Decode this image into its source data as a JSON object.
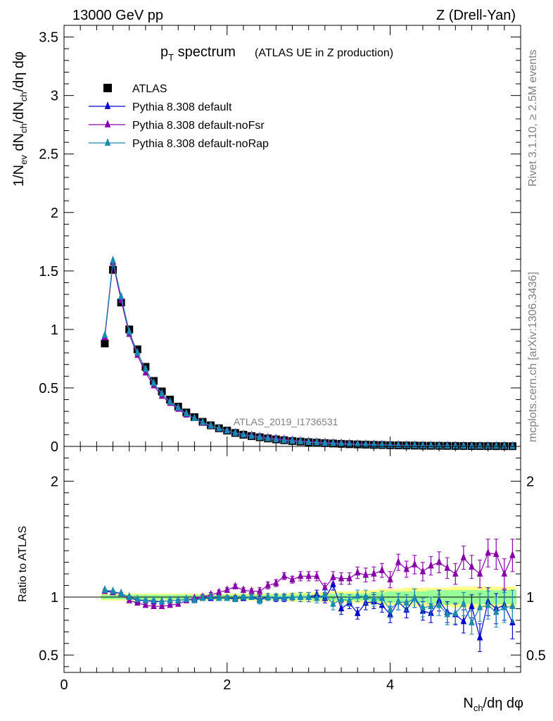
{
  "header": {
    "energy_label": "13000 GeV pp",
    "process_label": "Z (Drell-Yan)"
  },
  "side_text": {
    "rivet": "Rivet 3.1.10, ≥ 2.5M events",
    "mcplots": "mcplots.cern.ch [arXiv:1306.3436]"
  },
  "chart_data": [
    {
      "panel": "main",
      "type": "scatter",
      "title_main": "p",
      "title_sub": "T",
      "title_rest": " spectrum",
      "title_note": "(ATLAS UE in Z production)",
      "analysis_tag": "ATLAS_2019_I1736531",
      "ylabel": "1/N_ev dN_ch/dN_ch/dη dφ",
      "ylabel_parts": {
        "a": "1/N",
        "b": "ev",
        "c": " dN",
        "d": "ch",
        "e": "/dN",
        "f": "ch",
        "g": "/dη dφ"
      },
      "xlim": [
        0,
        5.6
      ],
      "ylim": [
        0,
        3.6
      ],
      "yticks": [
        0,
        0.5,
        1,
        1.5,
        2,
        2.5,
        3,
        3.5
      ],
      "ytick_labels": [
        "0",
        "0.5",
        "1",
        "1.5",
        "2",
        "2.5",
        "3",
        "3.5"
      ],
      "legend_position": "top-left",
      "x": [
        0.5,
        0.6,
        0.7,
        0.8,
        0.9,
        1.0,
        1.1,
        1.2,
        1.3,
        1.4,
        1.5,
        1.6,
        1.7,
        1.8,
        1.9,
        2.0,
        2.1,
        2.2,
        2.3,
        2.4,
        2.5,
        2.6,
        2.7,
        2.8,
        2.9,
        3.0,
        3.1,
        3.2,
        3.3,
        3.4,
        3.5,
        3.6,
        3.7,
        3.8,
        3.9,
        4.0,
        4.1,
        4.2,
        4.3,
        4.4,
        4.5,
        4.6,
        4.7,
        4.8,
        4.9,
        5.0,
        5.1,
        5.2,
        5.3,
        5.4,
        5.5
      ],
      "series": [
        {
          "name": "ATLAS",
          "color": "#000000",
          "marker": "square",
          "values": [
            0.88,
            1.51,
            1.23,
            1.0,
            0.83,
            0.68,
            0.56,
            0.47,
            0.4,
            0.34,
            0.29,
            0.25,
            0.21,
            0.18,
            0.155,
            0.135,
            0.115,
            0.1,
            0.088,
            0.078,
            0.068,
            0.06,
            0.053,
            0.046,
            0.041,
            0.036,
            0.032,
            0.028,
            0.025,
            0.022,
            0.019,
            0.017,
            0.015,
            0.013,
            0.012,
            0.01,
            0.009,
            0.008,
            0.007,
            0.006,
            0.0055,
            0.005,
            0.0045,
            0.004,
            0.0035,
            0.003,
            0.0027,
            0.0024,
            0.0021,
            0.0019,
            0.0017
          ]
        },
        {
          "name": "Pythia 8.308 default",
          "color": "#0000cc",
          "marker": "triangle",
          "values": [
            0.94,
            1.58,
            1.27,
            0.98,
            0.8,
            0.66,
            0.54,
            0.45,
            0.38,
            0.33,
            0.28,
            0.24,
            0.205,
            0.176,
            0.152,
            0.132,
            0.113,
            0.099,
            0.087,
            0.077,
            0.068,
            0.059,
            0.052,
            0.046,
            0.041,
            0.036,
            0.032,
            0.028,
            0.025,
            0.022,
            0.019,
            0.017,
            0.015,
            0.013,
            0.012,
            0.01,
            0.009,
            0.008,
            0.007,
            0.006,
            0.0055,
            0.005,
            0.0045,
            0.004,
            0.0035,
            0.003,
            0.0027,
            0.0024,
            0.0021,
            0.0019,
            0.0017
          ]
        },
        {
          "name": "Pythia 8.308 default-noFsr",
          "color": "#8800aa",
          "marker": "triangle",
          "values": [
            0.93,
            1.57,
            1.25,
            0.96,
            0.78,
            0.63,
            0.52,
            0.43,
            0.37,
            0.32,
            0.27,
            0.24,
            0.2,
            0.175,
            0.152,
            0.134,
            0.117,
            0.104,
            0.093,
            0.084,
            0.075,
            0.067,
            0.06,
            0.053,
            0.047,
            0.042,
            0.038,
            0.034,
            0.03,
            0.027,
            0.024,
            0.021,
            0.019,
            0.017,
            0.015,
            0.013,
            0.012,
            0.011,
            0.0095,
            0.0085,
            0.0075,
            0.0068,
            0.006,
            0.0053,
            0.0047,
            0.0041,
            0.0037,
            0.0033,
            0.003,
            0.0027,
            0.0024
          ]
        },
        {
          "name": "Pythia 8.308 default-noRap",
          "color": "#1a8ab0",
          "marker": "triangle",
          "values": [
            0.95,
            1.59,
            1.28,
            0.98,
            0.8,
            0.66,
            0.54,
            0.45,
            0.38,
            0.33,
            0.28,
            0.24,
            0.205,
            0.177,
            0.153,
            0.133,
            0.114,
            0.1,
            0.087,
            0.077,
            0.067,
            0.059,
            0.052,
            0.046,
            0.041,
            0.036,
            0.032,
            0.028,
            0.025,
            0.022,
            0.019,
            0.017,
            0.015,
            0.013,
            0.012,
            0.01,
            0.009,
            0.008,
            0.007,
            0.006,
            0.0055,
            0.005,
            0.0045,
            0.004,
            0.0035,
            0.003,
            0.0027,
            0.0024,
            0.0021,
            0.0019,
            0.0017
          ]
        }
      ]
    },
    {
      "panel": "ratio",
      "type": "line",
      "ylabel": "Ratio to ATLAS",
      "xlabel": "N_ch/dη dφ",
      "xlabel_parts": {
        "a": "N",
        "b": "ch",
        "c": "/dη dφ"
      },
      "xlim": [
        0,
        5.6
      ],
      "ylim": [
        0.35,
        2.3
      ],
      "xticks": [
        0,
        2,
        4
      ],
      "xtick_labels": [
        "0",
        "2",
        "4"
      ],
      "yticks": [
        0.5,
        1,
        2
      ],
      "ytick_labels": [
        "0.5",
        "1",
        "2"
      ],
      "x": [
        0.5,
        0.6,
        0.7,
        0.8,
        0.9,
        1.0,
        1.1,
        1.2,
        1.3,
        1.4,
        1.5,
        1.6,
        1.7,
        1.8,
        1.9,
        2.0,
        2.1,
        2.2,
        2.3,
        2.4,
        2.5,
        2.6,
        2.7,
        2.8,
        2.9,
        3.0,
        3.1,
        3.2,
        3.3,
        3.4,
        3.5,
        3.6,
        3.7,
        3.8,
        3.9,
        4.0,
        4.1,
        4.2,
        4.3,
        4.4,
        4.5,
        4.6,
        4.7,
        4.8,
        4.9,
        5.0,
        5.1,
        5.2,
        5.3,
        5.4,
        5.5
      ],
      "band": {
        "inner_color": "#99ff99",
        "outer_color": "#ffff88",
        "inner_halfwidth": [
          0.02,
          0.02,
          0.02,
          0.02,
          0.02,
          0.02,
          0.02,
          0.02,
          0.02,
          0.02,
          0.02,
          0.02,
          0.02,
          0.02,
          0.02,
          0.02,
          0.02,
          0.02,
          0.02,
          0.02,
          0.02,
          0.02,
          0.02,
          0.02,
          0.02,
          0.02,
          0.02,
          0.02,
          0.03,
          0.03,
          0.03,
          0.03,
          0.03,
          0.04,
          0.04,
          0.05,
          0.05,
          0.05,
          0.05,
          0.05,
          0.06,
          0.06,
          0.06,
          0.06,
          0.06,
          0.06,
          0.06,
          0.06,
          0.06,
          0.06,
          0.06
        ],
        "outer_halfwidth": [
          0.03,
          0.03,
          0.03,
          0.03,
          0.03,
          0.03,
          0.03,
          0.03,
          0.03,
          0.03,
          0.03,
          0.03,
          0.03,
          0.03,
          0.03,
          0.03,
          0.03,
          0.03,
          0.03,
          0.03,
          0.03,
          0.03,
          0.03,
          0.04,
          0.04,
          0.04,
          0.04,
          0.04,
          0.05,
          0.05,
          0.05,
          0.05,
          0.06,
          0.06,
          0.07,
          0.07,
          0.07,
          0.08,
          0.08,
          0.08,
          0.08,
          0.08,
          0.08,
          0.09,
          0.09,
          0.09,
          0.09,
          0.09,
          0.09,
          0.09,
          0.09
        ]
      },
      "series": [
        {
          "name": "Pythia 8.308 default",
          "color": "#0000cc",
          "values": [
            1.06,
            1.04,
            1.03,
            1.0,
            0.97,
            0.97,
            0.96,
            0.96,
            0.97,
            0.97,
            0.98,
            0.98,
            0.99,
            0.99,
            0.99,
            0.99,
            0.99,
            0.99,
            1.0,
            0.98,
            1.0,
            0.99,
            0.99,
            1.0,
            1.0,
            1.0,
            1.02,
            0.99,
            1.11,
            0.9,
            0.95,
            0.86,
            0.95,
            0.96,
            0.93,
            0.85,
            0.96,
            0.89,
            0.99,
            0.88,
            0.86,
            0.97,
            0.87,
            0.85,
            0.79,
            0.92,
            0.65,
            0.96,
            0.9,
            0.93,
            0.78
          ],
          "errors": [
            0.01,
            0.01,
            0.01,
            0.01,
            0.01,
            0.01,
            0.01,
            0.01,
            0.01,
            0.01,
            0.01,
            0.01,
            0.02,
            0.02,
            0.02,
            0.02,
            0.02,
            0.02,
            0.02,
            0.03,
            0.03,
            0.03,
            0.03,
            0.03,
            0.04,
            0.04,
            0.04,
            0.04,
            0.05,
            0.05,
            0.05,
            0.05,
            0.06,
            0.06,
            0.06,
            0.07,
            0.07,
            0.07,
            0.08,
            0.08,
            0.08,
            0.09,
            0.09,
            0.09,
            0.1,
            0.1,
            0.12,
            0.12,
            0.13,
            0.13,
            0.14
          ]
        },
        {
          "name": "Pythia 8.308 default-noFsr",
          "color": "#8800aa",
          "values": [
            1.05,
            1.04,
            1.03,
            0.97,
            0.95,
            0.93,
            0.92,
            0.92,
            0.93,
            0.94,
            0.97,
            0.99,
            1.0,
            1.02,
            1.04,
            1.06,
            1.09,
            1.06,
            1.05,
            1.05,
            1.1,
            1.12,
            1.18,
            1.15,
            1.18,
            1.18,
            1.18,
            1.08,
            1.17,
            1.16,
            1.16,
            1.21,
            1.19,
            1.2,
            1.23,
            1.15,
            1.3,
            1.24,
            1.28,
            1.22,
            1.27,
            1.3,
            1.25,
            1.2,
            1.34,
            1.26,
            1.2,
            1.38,
            1.37,
            1.2,
            1.36
          ],
          "errors": [
            0.01,
            0.01,
            0.01,
            0.01,
            0.01,
            0.01,
            0.01,
            0.01,
            0.01,
            0.01,
            0.01,
            0.01,
            0.02,
            0.02,
            0.02,
            0.02,
            0.02,
            0.02,
            0.02,
            0.03,
            0.03,
            0.03,
            0.03,
            0.03,
            0.04,
            0.04,
            0.04,
            0.04,
            0.05,
            0.05,
            0.05,
            0.05,
            0.06,
            0.06,
            0.06,
            0.07,
            0.07,
            0.07,
            0.08,
            0.08,
            0.08,
            0.09,
            0.09,
            0.09,
            0.1,
            0.1,
            0.12,
            0.12,
            0.13,
            0.13,
            0.14
          ]
        },
        {
          "name": "Pythia 8.308 default-noRap",
          "color": "#1a8ab0",
          "values": [
            1.06,
            1.05,
            1.03,
            1.0,
            0.98,
            0.97,
            0.97,
            0.96,
            0.97,
            0.97,
            0.98,
            0.97,
            0.99,
            1.0,
            0.99,
            0.99,
            0.98,
            1.0,
            1.0,
            0.97,
            1.0,
            1.0,
            1.0,
            1.0,
            1.0,
            1.0,
            0.99,
            1.02,
            0.94,
            0.98,
            0.97,
            1.01,
            1.0,
            0.98,
            0.99,
            0.89,
            0.96,
            0.95,
            0.99,
            0.91,
            0.92,
            0.93,
            0.85,
            0.86,
            0.94,
            0.78,
            0.91,
            0.93,
            0.87,
            0.91,
            0.92
          ],
          "errors": [
            0.01,
            0.01,
            0.01,
            0.01,
            0.01,
            0.01,
            0.01,
            0.01,
            0.01,
            0.01,
            0.01,
            0.01,
            0.02,
            0.02,
            0.02,
            0.02,
            0.02,
            0.02,
            0.02,
            0.03,
            0.03,
            0.03,
            0.03,
            0.03,
            0.04,
            0.04,
            0.04,
            0.04,
            0.05,
            0.05,
            0.05,
            0.05,
            0.06,
            0.06,
            0.06,
            0.07,
            0.07,
            0.07,
            0.08,
            0.08,
            0.08,
            0.09,
            0.09,
            0.09,
            0.1,
            0.1,
            0.12,
            0.12,
            0.13,
            0.13,
            0.14
          ]
        }
      ]
    }
  ]
}
